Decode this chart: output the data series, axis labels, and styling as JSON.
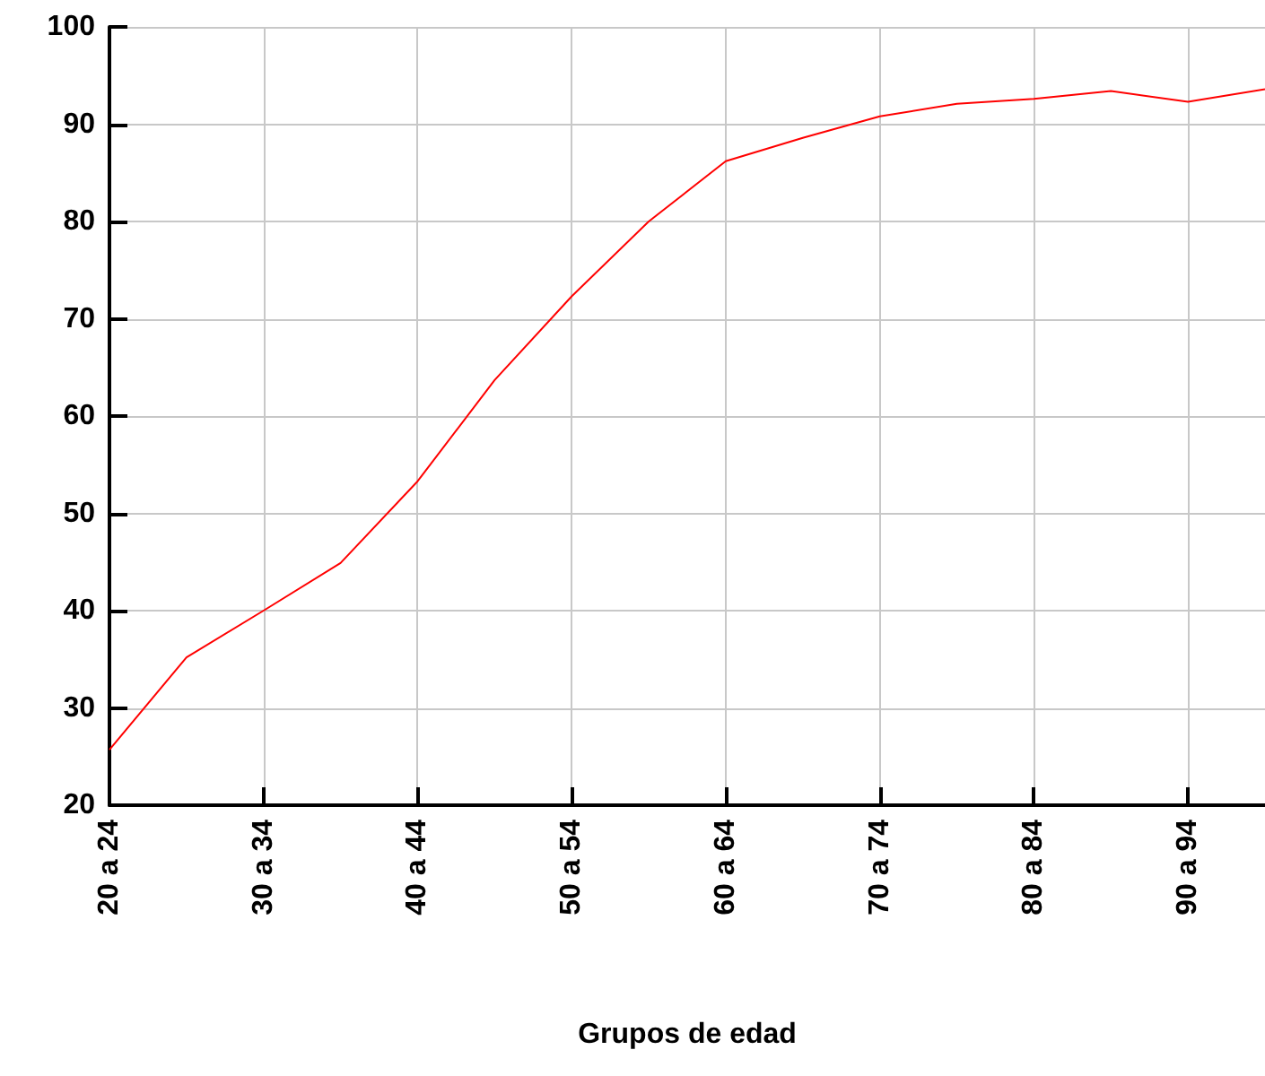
{
  "chart_data": {
    "type": "line",
    "xlabel": "Grupos de edad",
    "categories": [
      "20 a 24",
      null,
      "30 a 34",
      null,
      "40 a 44",
      null,
      "50 a 54",
      null,
      "60 a 64",
      null,
      "70 a 74",
      null,
      "80 a 84",
      null,
      "90 a 94",
      null
    ],
    "series": [
      {
        "color": "#ff0000",
        "values": [
          25.7,
          35.2,
          40.0,
          44.9,
          53.3,
          63.7,
          72.3,
          80.0,
          86.2,
          88.6,
          90.8,
          92.1,
          92.6,
          93.4,
          92.3,
          93.6
        ]
      }
    ],
    "ylim": [
      20,
      100
    ],
    "yticks": [
      20,
      30,
      40,
      50,
      60,
      70,
      80,
      90,
      100
    ],
    "grid": true,
    "marker": "none",
    "line_style": "solid"
  }
}
